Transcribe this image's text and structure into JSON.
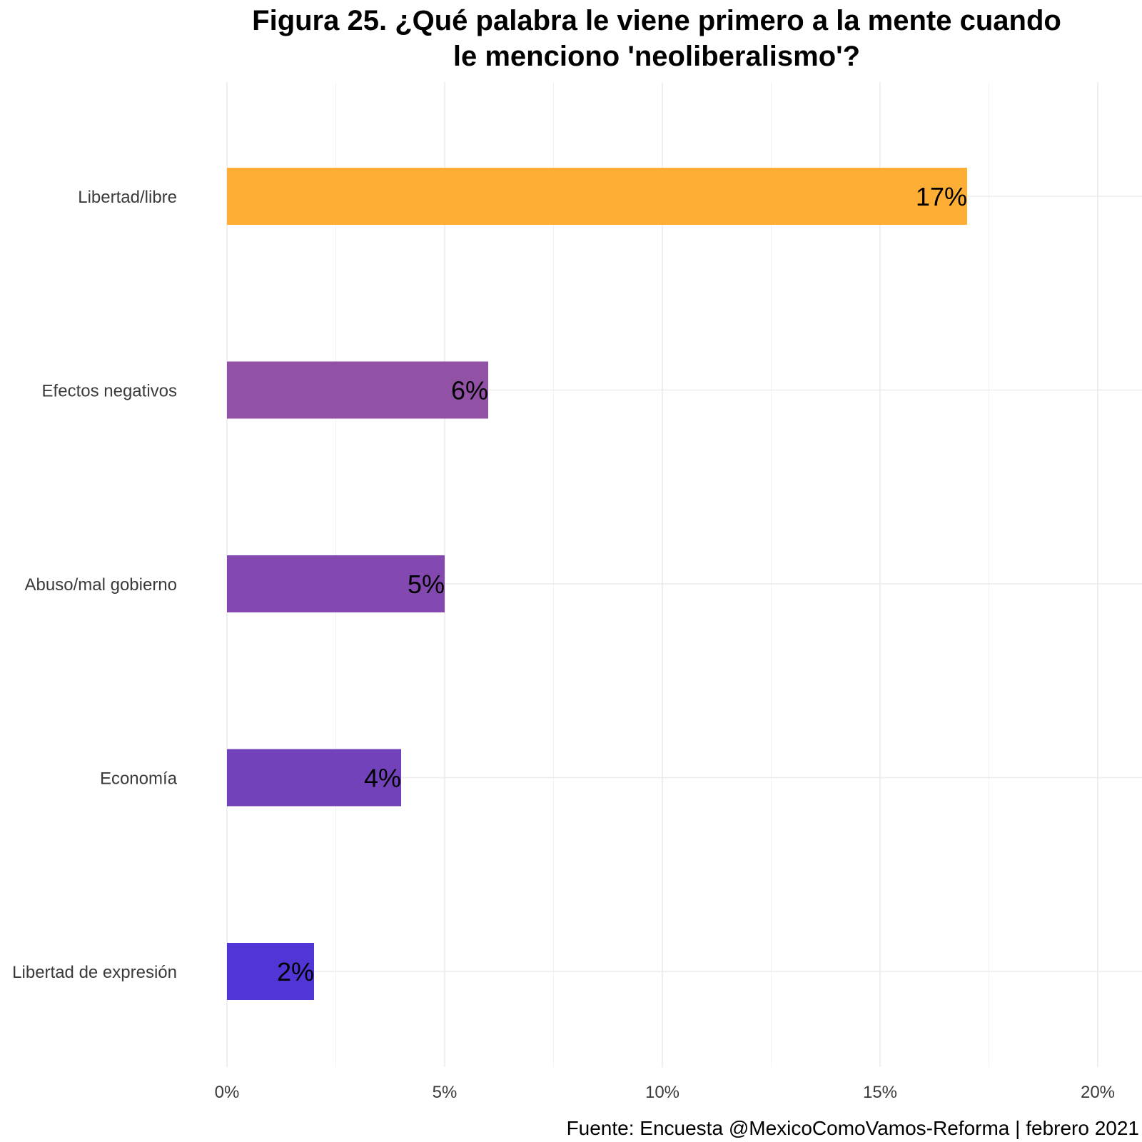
{
  "chart_data": {
    "type": "bar",
    "orientation": "horizontal",
    "title_lines": [
      "Figura 25. ¿Qué palabra le viene primero a la mente cuando",
      "le menciono 'neoliberalismo'?"
    ],
    "categories": [
      "Libertad/libre",
      "Efectos negativos",
      "Abuso/mal gobierno",
      "Economía",
      "Libertad de expresión"
    ],
    "values": [
      17,
      6,
      5,
      4,
      2
    ],
    "data_labels": [
      "17%",
      "6%",
      "5%",
      "4%",
      "2%"
    ],
    "colors": [
      "#FEAE35",
      "#9152A6",
      "#8449B1",
      "#7242BA",
      "#5235D5"
    ],
    "xlim": [
      0,
      20
    ],
    "x_ticks": [
      0,
      5,
      10,
      15,
      20
    ],
    "x_tick_labels": [
      "0%",
      "5%",
      "10%",
      "15%",
      "20%"
    ],
    "xlabel": "",
    "ylabel": "",
    "grid": true,
    "caption": "Fuente: Encuesta @MexicoComoVamos-Reforma | febrero 2021"
  }
}
